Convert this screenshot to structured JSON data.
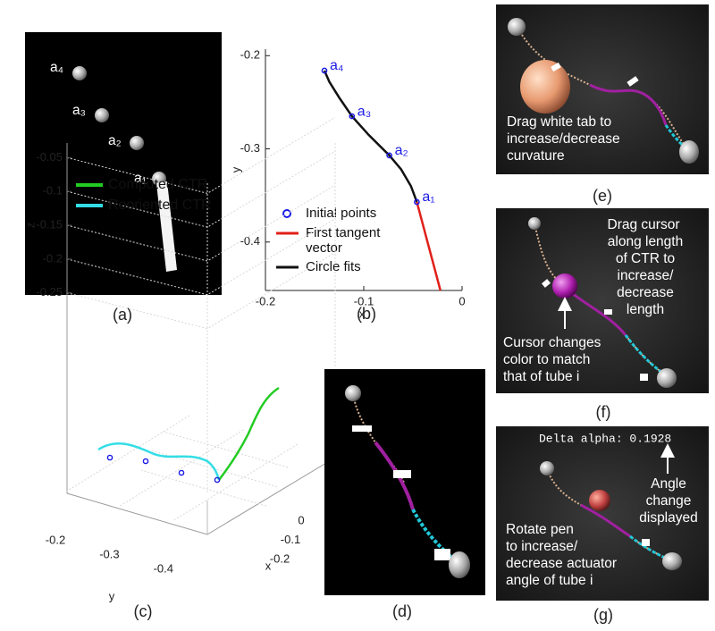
{
  "chart_data": [
    {
      "type": "line",
      "xlabel": "x",
      "ylabel": "y",
      "xlim": [
        -0.2,
        0
      ],
      "ylim": [
        -0.452,
        -0.193
      ],
      "xticks": [
        -0.2,
        -0.1,
        0
      ],
      "yticks": [
        -0.4,
        -0.3,
        -0.2
      ],
      "legend": "lower left",
      "series": [
        {
          "name": "Initial points",
          "type": "scatter",
          "color": "#1a1ae6",
          "x": [
            -0.14,
            -0.112,
            -0.074,
            -0.046
          ],
          "values": [
            -0.216,
            -0.265,
            -0.307,
            -0.357
          ],
          "point_labels": [
            "a₄",
            "a₃",
            "a₂",
            "a₁"
          ]
        },
        {
          "name": "First tangent vector",
          "type": "line",
          "color": "#e0201a",
          "x": [
            -0.046,
            -0.022
          ],
          "values": [
            -0.357,
            -0.452
          ]
        },
        {
          "name": "Circle fits",
          "type": "line",
          "color": "#111111",
          "x": [
            -0.14,
            -0.135,
            -0.125,
            -0.112,
            -0.095,
            -0.074,
            -0.062,
            -0.052,
            -0.046
          ],
          "values": [
            -0.216,
            -0.228,
            -0.245,
            -0.265,
            -0.285,
            -0.307,
            -0.322,
            -0.34,
            -0.357
          ]
        }
      ]
    },
    {
      "type": "line3d",
      "xlabel": "x",
      "ylabel": "y",
      "zlabel": "z",
      "xlim": [
        0.05,
        -0.25
      ],
      "ylim": [
        -0.2,
        -0.45
      ],
      "zlim": [
        -0.035,
        -0.265
      ],
      "xticks": [
        0,
        -0.1,
        -0.2
      ],
      "yticks": [
        -0.2,
        -0.3,
        -0.4
      ],
      "zticks": [
        -0.05,
        -0.1,
        -0.15,
        -0.2,
        -0.25
      ],
      "grid": true,
      "series": [
        {
          "name": "Computed CTR",
          "color": "#22cc22"
        },
        {
          "name": "Reoriented CTR",
          "color": "#33dde6"
        }
      ]
    }
  ],
  "panels": {
    "a": {
      "caption": "(a)",
      "labels": [
        "a₄",
        "a₃",
        "a₂",
        "a₁"
      ]
    },
    "b": {
      "caption": "(b)"
    },
    "c": {
      "caption": "(c)"
    },
    "d": {
      "caption": "(d)"
    },
    "e": {
      "caption": "(e)",
      "lines": [
        "Drag white tab to",
        "increase/decrease",
        "curvature"
      ]
    },
    "f": {
      "caption": "(f)",
      "right_lines": [
        "Drag cursor",
        "along length",
        "of CTR to",
        "increase/",
        "decrease",
        "length"
      ],
      "left_lines": [
        "Cursor changes",
        "color to match",
        "that of tube i"
      ]
    },
    "g": {
      "caption": "(g)",
      "readout": "Delta alpha: 0.1928",
      "right_lines": [
        "Angle",
        "change",
        "displayed"
      ],
      "left_lines": [
        "Rotate pen",
        "to increase/",
        "decrease actuator",
        "angle of tube i"
      ]
    }
  }
}
